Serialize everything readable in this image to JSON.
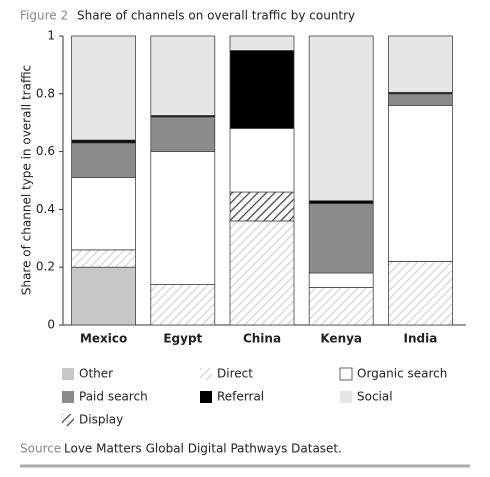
{
  "chart_data": {
    "type": "stacked_bar",
    "figure_label": "Figure 2",
    "title": "Share of channels on overall traffic by country",
    "y_label": "Share of channel type in overall traffic",
    "categories": [
      "Mexico",
      "Egypt",
      "China",
      "Kenya",
      "India"
    ],
    "series": [
      {
        "name": "Other",
        "color": "#c8c8c8",
        "values": [
          0.2,
          0,
          0,
          0,
          0
        ]
      },
      {
        "name": "Direct",
        "color": "#d4d4d4",
        "hatch": true,
        "values": [
          0.06,
          0.14,
          0.36,
          0.13,
          0.22
        ]
      },
      {
        "name": "Organic search",
        "color": "#ffffff",
        "values": [
          0.25,
          0.46,
          0.22,
          0.05,
          0.54
        ]
      },
      {
        "name": "Paid search",
        "color": "#8c8c8c",
        "values": [
          0.12,
          0.12,
          0,
          0.24,
          0.04
        ]
      },
      {
        "name": "Referral",
        "color": "#000000",
        "values": [
          0.01,
          0.005,
          0.27,
          0.01,
          0.005
        ]
      },
      {
        "name": "Social",
        "color": "#e6e6e6",
        "values": [
          0.36,
          0.275,
          0.05,
          0.57,
          0.195
        ]
      },
      {
        "name": "Display",
        "color": "#444444",
        "hatch": true,
        "values": [
          0,
          0,
          0.1,
          0,
          0
        ]
      }
    ],
    "ylim": [
      0,
      1
    ],
    "yticks": [
      0,
      0.2,
      0.4,
      0.6,
      0.8,
      1
    ],
    "source_label": "Source",
    "source": "Love Matters Global Digital Pathways Dataset."
  }
}
